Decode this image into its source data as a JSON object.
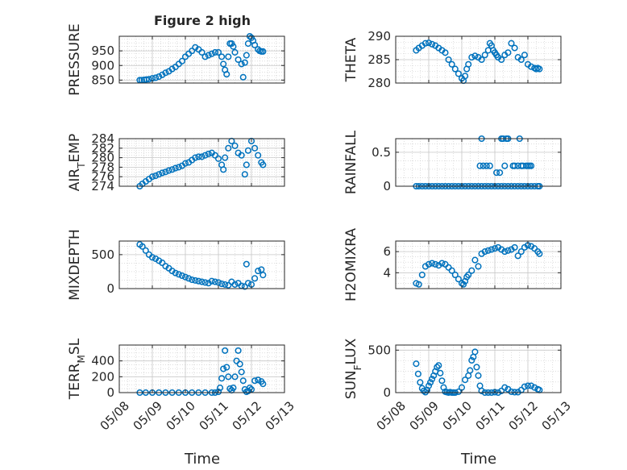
{
  "figure": {
    "title": "Figure 2 high"
  },
  "colors": {
    "marker": "#0072BD",
    "axis": "#262626",
    "grid": "#c8c8c8",
    "background": "#ffffff"
  },
  "x_axis": {
    "ticks": [
      "05/08",
      "05/09",
      "05/10",
      "05/11",
      "05/12",
      "05/13"
    ],
    "label": "Time"
  },
  "chart_data": [
    {
      "type": "scatter",
      "name": "pressure",
      "ylabel": "PRESSURE",
      "xlim": [
        0,
        5
      ],
      "ylim": [
        840,
        1000
      ],
      "yticks": [
        850,
        900,
        950
      ],
      "minor_grid": true,
      "x": [
        0.62,
        0.68,
        0.75,
        0.82,
        0.9,
        1.0,
        1.1,
        1.2,
        1.3,
        1.4,
        1.5,
        1.6,
        1.7,
        1.8,
        1.9,
        2.0,
        2.1,
        2.2,
        2.3,
        2.4,
        2.5,
        2.6,
        2.7,
        2.8,
        2.9,
        3.0,
        3.1,
        3.15,
        3.2,
        3.25,
        3.3,
        3.35,
        3.4,
        3.45,
        3.5,
        3.6,
        3.7,
        3.75,
        3.8,
        3.85,
        3.9,
        3.95,
        4.0,
        4.05,
        4.1,
        4.2,
        4.25,
        4.3,
        4.35
      ],
      "y": [
        850,
        850,
        851,
        852,
        853,
        856,
        858,
        862,
        868,
        875,
        880,
        888,
        895,
        905,
        915,
        930,
        940,
        950,
        962,
        955,
        945,
        930,
        935,
        940,
        945,
        945,
        930,
        905,
        885,
        870,
        930,
        975,
        975,
        965,
        945,
        920,
        905,
        860,
        910,
        935,
        975,
        1000,
        995,
        985,
        970,
        955,
        950,
        948,
        948
      ]
    },
    {
      "type": "scatter",
      "name": "theta",
      "ylabel": "THETA",
      "xlim": [
        0,
        5
      ],
      "ylim": [
        280,
        290
      ],
      "yticks": [
        280,
        285,
        290
      ],
      "minor_grid": true,
      "x": [
        0.62,
        0.7,
        0.8,
        0.9,
        1.0,
        1.1,
        1.2,
        1.3,
        1.4,
        1.5,
        1.6,
        1.7,
        1.8,
        1.9,
        2.0,
        2.05,
        2.1,
        2.15,
        2.2,
        2.3,
        2.4,
        2.5,
        2.6,
        2.7,
        2.8,
        2.85,
        2.9,
        2.95,
        3.0,
        3.05,
        3.1,
        3.2,
        3.3,
        3.4,
        3.5,
        3.6,
        3.7,
        3.8,
        3.9,
        4.0,
        4.1,
        4.2,
        4.25,
        4.3,
        4.35
      ],
      "y": [
        287,
        287.5,
        288,
        288.5,
        288.6,
        288.3,
        288,
        287.5,
        287,
        286.5,
        285,
        284,
        283,
        282,
        281,
        280.5,
        281.5,
        283,
        284,
        285.5,
        285.8,
        285.5,
        285,
        286,
        287,
        288.5,
        288,
        287,
        286.5,
        286,
        285.5,
        285,
        286,
        286.5,
        288.5,
        287.5,
        285.5,
        285,
        286,
        284,
        283.5,
        283.2,
        283,
        283.2,
        283
      ]
    },
    {
      "type": "scatter",
      "name": "air_temp",
      "ylabel": "AIR_TEMP",
      "xlim": [
        0,
        5
      ],
      "ylim": [
        274,
        284
      ],
      "yticks": [
        274,
        276,
        278,
        280,
        282,
        284
      ],
      "minor_grid": true,
      "x": [
        0.62,
        0.7,
        0.8,
        0.9,
        1.0,
        1.1,
        1.2,
        1.3,
        1.4,
        1.5,
        1.6,
        1.7,
        1.8,
        1.9,
        2.0,
        2.1,
        2.2,
        2.3,
        2.4,
        2.5,
        2.6,
        2.7,
        2.8,
        2.9,
        3.0,
        3.1,
        3.15,
        3.2,
        3.3,
        3.4,
        3.5,
        3.6,
        3.7,
        3.8,
        3.85,
        3.9,
        4.0,
        4.1,
        4.2,
        4.3,
        4.35
      ],
      "y": [
        274,
        274.5,
        275,
        275.5,
        276,
        276.2,
        276.5,
        276.8,
        277,
        277.3,
        277.5,
        277.8,
        278,
        278.3,
        278.8,
        279,
        279.5,
        280,
        280.2,
        280.2,
        280.5,
        280.8,
        281,
        280.5,
        279.8,
        278.5,
        277.5,
        280,
        282,
        283.5,
        282.5,
        281,
        280.5,
        276.5,
        278.5,
        281.5,
        283.5,
        282,
        280.5,
        279,
        278.5
      ]
    },
    {
      "type": "scatter",
      "name": "rainfall",
      "ylabel": "RAINFALL",
      "xlim": [
        0,
        5
      ],
      "ylim": [
        0,
        0.7
      ],
      "yticks": [
        0,
        0.5
      ],
      "minor_grid": true,
      "x": [
        0.62,
        0.7,
        0.8,
        0.9,
        1.0,
        1.1,
        1.2,
        1.3,
        1.4,
        1.5,
        1.6,
        1.7,
        1.8,
        1.9,
        2.0,
        2.1,
        2.2,
        2.3,
        2.4,
        2.5,
        2.6,
        2.7,
        2.8,
        2.9,
        3.0,
        3.1,
        3.2,
        3.3,
        3.4,
        3.5,
        3.6,
        3.7,
        3.8,
        3.9,
        4.0,
        4.1,
        4.2,
        4.3,
        4.35,
        2.55,
        2.6,
        2.65,
        2.75,
        2.85,
        3.05,
        3.15,
        3.2,
        3.25,
        3.3,
        3.35,
        3.4,
        3.55,
        3.6,
        3.7,
        3.75,
        3.8,
        3.85,
        3.95,
        4.0,
        4.05,
        4.1
      ],
      "y": [
        0,
        0,
        0,
        0,
        0,
        0,
        0,
        0,
        0,
        0,
        0,
        0,
        0,
        0,
        0,
        0,
        0,
        0,
        0,
        0,
        0,
        0,
        0,
        0,
        0,
        0,
        0,
        0,
        0,
        0,
        0,
        0,
        0,
        0,
        0,
        0,
        0,
        0,
        0,
        0.3,
        0.7,
        0.3,
        0.3,
        0.3,
        0.2,
        0.2,
        0.7,
        0.7,
        0.3,
        0.7,
        0.7,
        0.3,
        0.3,
        0.3,
        0.7,
        0.3,
        0.3,
        0.3,
        0.3,
        0.3,
        0.3
      ]
    },
    {
      "type": "scatter",
      "name": "mixdepth",
      "ylabel": "MIXDEPTH",
      "xlim": [
        0,
        5
      ],
      "ylim": [
        0,
        700
      ],
      "yticks": [
        0,
        500
      ],
      "minor_grid": true,
      "x": [
        0.62,
        0.7,
        0.8,
        0.9,
        1.0,
        1.1,
        1.2,
        1.3,
        1.4,
        1.5,
        1.6,
        1.7,
        1.8,
        1.9,
        2.0,
        2.1,
        2.2,
        2.3,
        2.4,
        2.5,
        2.6,
        2.7,
        2.8,
        2.9,
        3.0,
        3.1,
        3.2,
        3.3,
        3.4,
        3.5,
        3.6,
        3.7,
        3.8,
        3.85,
        3.9,
        4.0,
        4.1,
        4.2,
        4.3,
        4.35
      ],
      "y": [
        650,
        620,
        560,
        500,
        460,
        440,
        410,
        380,
        330,
        300,
        260,
        230,
        210,
        190,
        170,
        150,
        130,
        120,
        110,
        100,
        90,
        80,
        110,
        100,
        90,
        70,
        60,
        50,
        100,
        60,
        80,
        40,
        30,
        360,
        80,
        60,
        150,
        260,
        280,
        200
      ]
    },
    {
      "type": "scatter",
      "name": "h2omixra",
      "ylabel": "H2OMIXRA",
      "xlim": [
        0,
        5
      ],
      "ylim": [
        2.5,
        7
      ],
      "yticks": [
        4,
        6
      ],
      "minor_grid": true,
      "x": [
        0.62,
        0.7,
        0.8,
        0.9,
        1.0,
        1.1,
        1.2,
        1.3,
        1.4,
        1.5,
        1.6,
        1.7,
        1.8,
        1.9,
        2.0,
        2.05,
        2.1,
        2.15,
        2.2,
        2.3,
        2.4,
        2.5,
        2.6,
        2.7,
        2.8,
        2.9,
        3.0,
        3.1,
        3.2,
        3.3,
        3.4,
        3.5,
        3.6,
        3.7,
        3.8,
        3.9,
        4.0,
        4.1,
        4.2,
        4.3,
        4.35
      ],
      "y": [
        3,
        2.9,
        3.8,
        4.6,
        4.8,
        4.9,
        4.8,
        4.7,
        4.9,
        4.8,
        4.5,
        4.2,
        3.8,
        3.4,
        3.0,
        2.9,
        3.2,
        3.6,
        3.8,
        4.2,
        5.2,
        4.6,
        5.8,
        6.0,
        6.1,
        6.2,
        6.3,
        6.4,
        6.2,
        6.0,
        6.1,
        6.2,
        6.4,
        5.6,
        6.0,
        6.4,
        6.6,
        6.5,
        6.3,
        6.0,
        5.8
      ]
    },
    {
      "type": "scatter",
      "name": "terr_msl",
      "ylabel": "TERR_MSL",
      "xlim": [
        0,
        5
      ],
      "ylim": [
        0,
        600
      ],
      "yticks": [
        0,
        200,
        400
      ],
      "minor_grid": true,
      "x": [
        0.62,
        0.8,
        1.0,
        1.2,
        1.4,
        1.6,
        1.8,
        2.0,
        2.2,
        2.4,
        2.6,
        2.8,
        2.9,
        3.0,
        3.05,
        3.1,
        3.15,
        3.2,
        3.25,
        3.3,
        3.35,
        3.4,
        3.45,
        3.5,
        3.55,
        3.6,
        3.65,
        3.7,
        3.75,
        3.8,
        3.85,
        3.9,
        3.95,
        4.0,
        4.1,
        4.2,
        4.3,
        4.35
      ],
      "y": [
        0,
        0,
        0,
        0,
        0,
        0,
        0,
        0,
        0,
        0,
        0,
        0,
        0,
        10,
        60,
        180,
        300,
        530,
        320,
        200,
        50,
        30,
        60,
        200,
        400,
        530,
        360,
        260,
        150,
        40,
        10,
        20,
        60,
        40,
        150,
        160,
        140,
        110
      ]
    },
    {
      "type": "scatter",
      "name": "sun_flux",
      "ylabel": "SUN_FLUX",
      "xlim": [
        0,
        5
      ],
      "ylim": [
        0,
        560
      ],
      "yticks": [
        0,
        500
      ],
      "minor_grid": true,
      "x": [
        0.62,
        0.68,
        0.74,
        0.8,
        0.85,
        0.9,
        0.95,
        1.0,
        1.05,
        1.1,
        1.15,
        1.2,
        1.25,
        1.3,
        1.35,
        1.4,
        1.45,
        1.5,
        1.55,
        1.6,
        1.65,
        1.7,
        1.75,
        1.8,
        1.9,
        2.0,
        2.1,
        2.2,
        2.25,
        2.3,
        2.35,
        2.4,
        2.45,
        2.5,
        2.55,
        2.6,
        2.7,
        2.8,
        2.9,
        3.0,
        3.1,
        3.2,
        3.3,
        3.4,
        3.5,
        3.6,
        3.7,
        3.8,
        3.9,
        4.0,
        4.1,
        4.2,
        4.3,
        4.35
      ],
      "y": [
        340,
        220,
        120,
        50,
        20,
        5,
        30,
        80,
        120,
        160,
        200,
        250,
        300,
        320,
        230,
        140,
        60,
        10,
        5,
        0,
        5,
        0,
        0,
        0,
        10,
        60,
        150,
        200,
        260,
        380,
        420,
        480,
        300,
        200,
        80,
        20,
        0,
        0,
        0,
        5,
        0,
        20,
        60,
        40,
        10,
        5,
        5,
        30,
        70,
        80,
        80,
        60,
        40,
        30
      ]
    }
  ]
}
